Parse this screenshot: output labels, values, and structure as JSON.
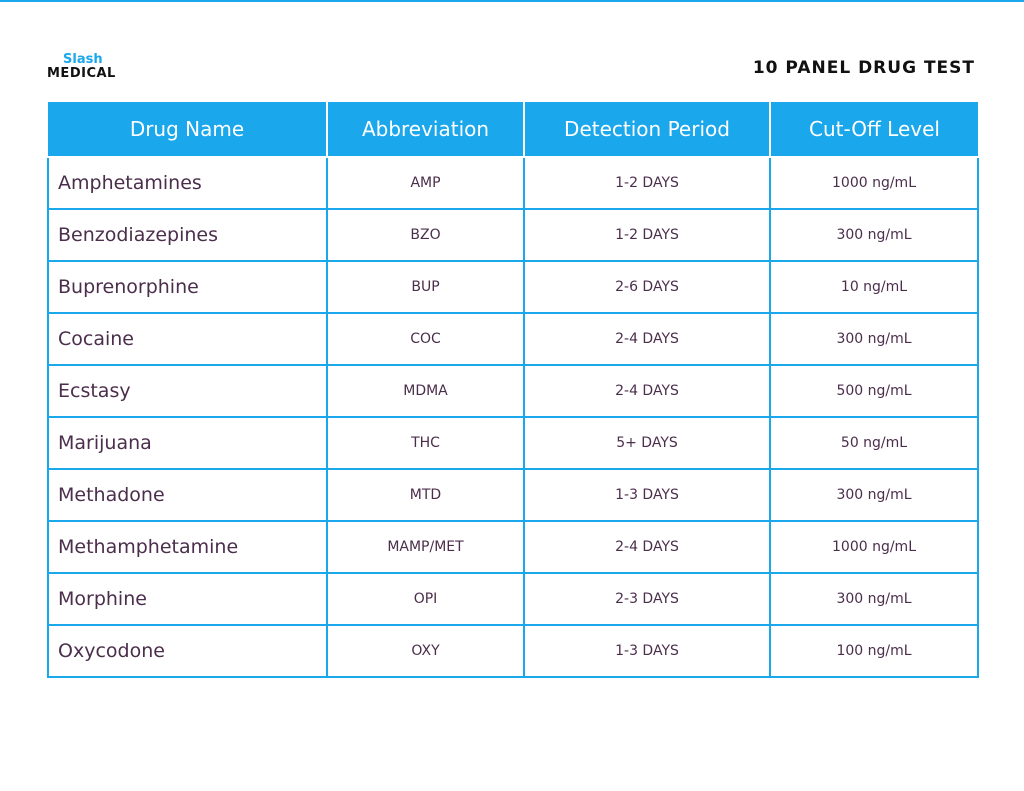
{
  "header": {
    "logo_top": "Slash",
    "logo_bottom": "MEDICAL",
    "title": "10 PANEL DRUG TEST"
  },
  "table": {
    "columns": [
      "Drug Name",
      "Abbreviation",
      "Detection Period",
      "Cut-Off Level"
    ],
    "rows": [
      [
        "Amphetamines",
        "AMP",
        "1-2 DAYS",
        "1000 ng/mL"
      ],
      [
        "Benzodiazepines",
        "BZO",
        "1-2 DAYS",
        "300 ng/mL"
      ],
      [
        "Buprenorphine",
        "BUP",
        "2-6 DAYS",
        "10 ng/mL"
      ],
      [
        "Cocaine",
        "COC",
        "2-4 DAYS",
        "300 ng/mL"
      ],
      [
        "Ecstasy",
        "MDMA",
        "2-4 DAYS",
        "500 ng/mL"
      ],
      [
        "Marijuana",
        "THC",
        "5+ DAYS",
        "50 ng/mL"
      ],
      [
        "Methadone",
        "MTD",
        "1-3 DAYS",
        "300 ng/mL"
      ],
      [
        "Methamphetamine",
        "MAMP/MET",
        "2-4 DAYS",
        "1000 ng/mL"
      ],
      [
        "Morphine",
        "OPI",
        "2-3 DAYS",
        "300 ng/mL"
      ],
      [
        "Oxycodone",
        "OXY",
        "1-3 DAYS",
        "100 ng/mL"
      ]
    ]
  }
}
